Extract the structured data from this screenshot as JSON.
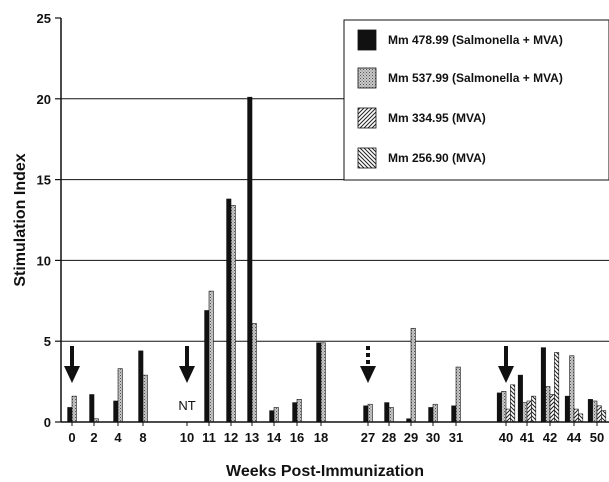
{
  "chart_data": {
    "type": "bar",
    "xlabel": "Weeks Post-Immunization",
    "ylabel": "Stimulation Index",
    "ylim": [
      0,
      25
    ],
    "yticks": [
      0,
      5,
      10,
      15,
      20,
      25
    ],
    "grid": "horizontal major gridlines at 5, 10, 15, 20",
    "legend_position": "top-right",
    "categories": [
      "0",
      "2",
      "4",
      "8",
      "10",
      "11",
      "12",
      "13",
      "14",
      "16",
      "18",
      "27",
      "28",
      "29",
      "30",
      "31",
      "40",
      "41",
      "42",
      "44",
      "50"
    ],
    "series": [
      {
        "name": "Mm 478.99 (Salmonella + MVA)",
        "pattern": "solid-black",
        "values": [
          0.9,
          1.7,
          1.3,
          4.4,
          null,
          6.9,
          13.8,
          20.1,
          0.7,
          1.2,
          4.9,
          1.0,
          1.2,
          0.2,
          0.9,
          1.0,
          1.8,
          2.9,
          4.6,
          1.6,
          1.4
        ]
      },
      {
        "name": "Mm 537.99 (Salmonella + MVA)",
        "pattern": "dotted-gray",
        "values": [
          1.6,
          0.2,
          3.3,
          2.9,
          null,
          8.1,
          13.4,
          6.1,
          0.9,
          1.4,
          4.9,
          1.1,
          0.9,
          5.8,
          1.1,
          3.4,
          1.9,
          1.2,
          2.2,
          4.1,
          1.3
        ]
      },
      {
        "name": "Mm 334.95 (MVA)",
        "pattern": "diagonal-hatch",
        "values": [
          null,
          null,
          null,
          null,
          null,
          null,
          null,
          null,
          null,
          null,
          null,
          null,
          null,
          null,
          null,
          null,
          0.8,
          1.3,
          1.7,
          0.8,
          1.0
        ]
      },
      {
        "name": "Mm 256.90 (MVA)",
        "pattern": "back-diagonal-hatch",
        "values": [
          null,
          null,
          null,
          null,
          null,
          null,
          null,
          null,
          null,
          null,
          null,
          null,
          null,
          null,
          null,
          null,
          2.3,
          1.6,
          4.3,
          0.5,
          0.7
        ]
      }
    ],
    "annotations": [
      {
        "at": "0",
        "symbol": "solid-down-arrow"
      },
      {
        "at": "10",
        "symbol": "solid-down-arrow",
        "label": "NT"
      },
      {
        "at": "27",
        "symbol": "dashed-down-arrow"
      },
      {
        "at": "40",
        "symbol": "solid-down-arrow"
      }
    ]
  }
}
